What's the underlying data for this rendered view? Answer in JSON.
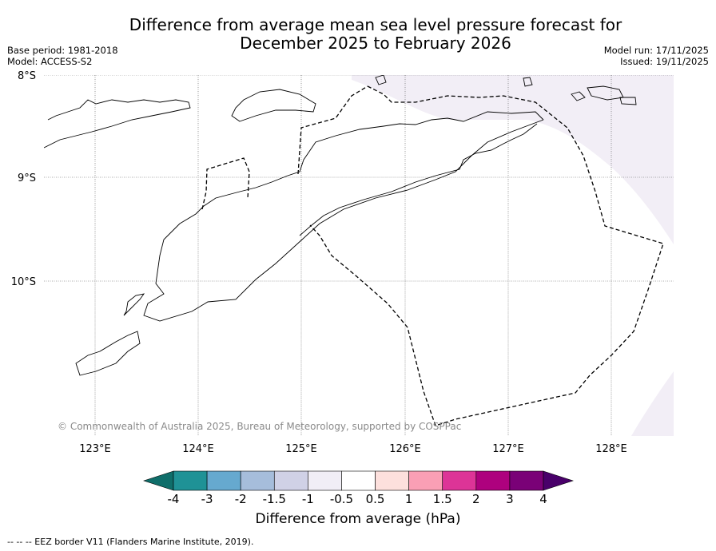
{
  "title": {
    "line1": "Difference from average mean sea level pressure forecast for",
    "line2": "December 2025 to February 2026"
  },
  "meta": {
    "base_period": "Base period: 1981-2018",
    "model": "Model: ACCESS-S2",
    "model_run": "Model run: 17/11/2025",
    "issued": "Issued: 19/11/2025"
  },
  "map": {
    "lat_labels": [
      "8°S",
      "9°S",
      "10°S"
    ],
    "lon_labels": [
      "123°E",
      "124°E",
      "125°E",
      "126°E",
      "127°E",
      "128°E"
    ],
    "copyright": "© Commonwealth of Australia 2025, Bureau of Meteorology, supported by COSPPac"
  },
  "colorbar": {
    "title": "Difference from average (hPa)",
    "tick_labels": [
      "-4",
      "-3",
      "-2",
      "-1.5",
      "-1",
      "-0.5",
      "0.5",
      "1",
      "1.5",
      "2",
      "3",
      "4"
    ],
    "colors": [
      "#0f6e6a",
      "#1f9296",
      "#66a9cf",
      "#a6bddb",
      "#d0d1e6",
      "#f1eef6",
      "#ffffff",
      "#fde0dd",
      "#fa9fb5",
      "#dd3497",
      "#ae017e",
      "#7a0177",
      "#49006a"
    ],
    "highlight_fill": "#f2eef6"
  },
  "footnote": "--  --  -- EEZ border V11 (Flanders Marine Institute, 2019)."
}
